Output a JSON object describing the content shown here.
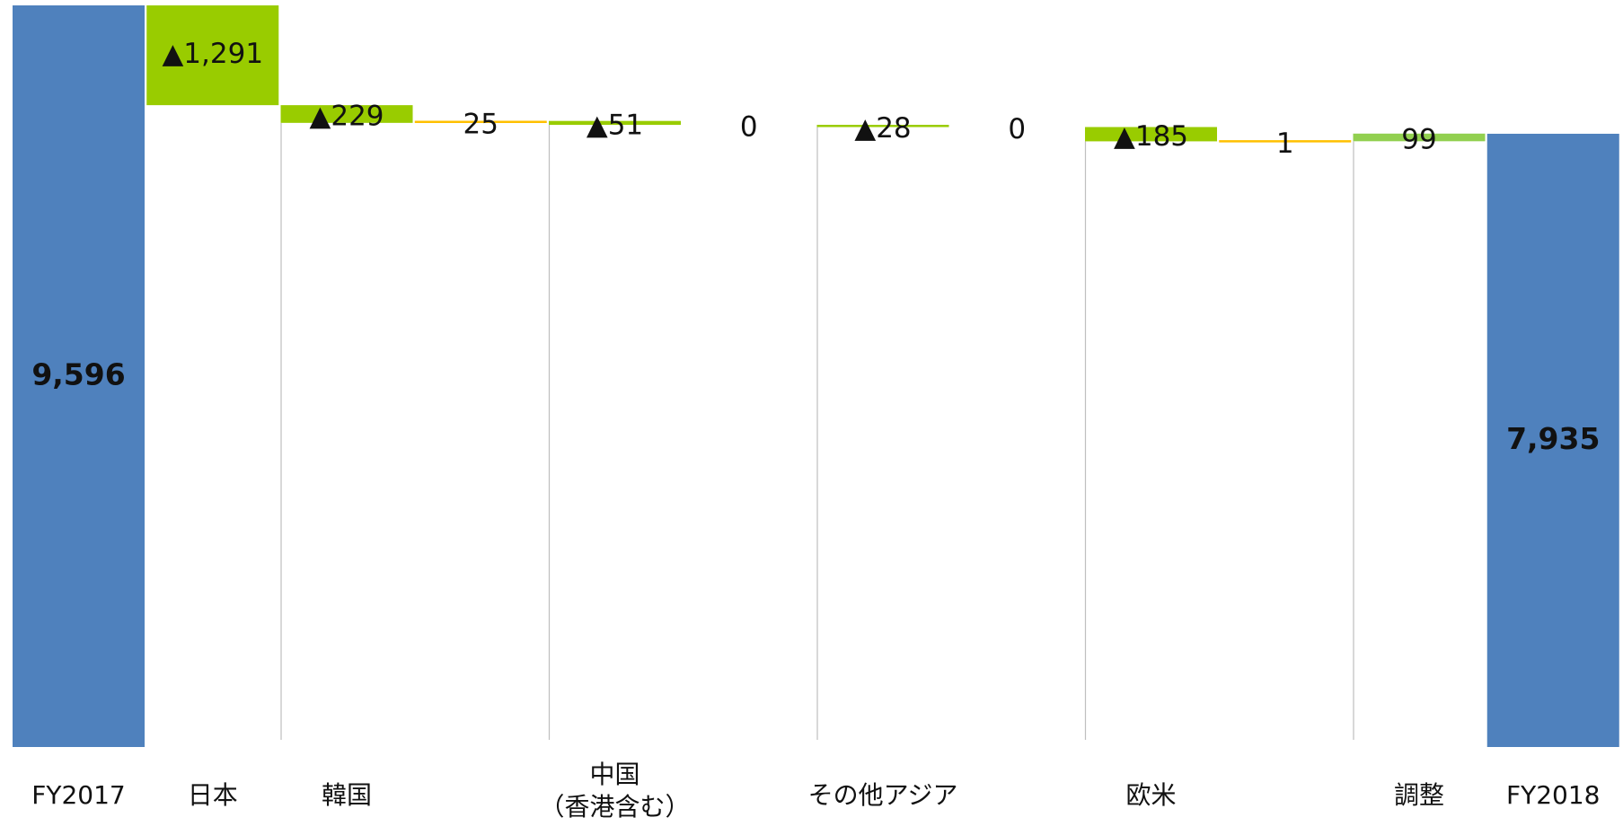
{
  "chart_data": {
    "type": "waterfall",
    "title": "",
    "xlabel": "",
    "ylabel": "",
    "ylim": [
      0,
      9596
    ],
    "grid": false,
    "legend": "none",
    "colors": {
      "total": "#4f81bd",
      "decrease": "#99cc00",
      "increase_small": "#ffc000",
      "adjust": "#92d050",
      "connector": "#bfbfbf"
    },
    "bars": [
      {
        "category": "FY2017",
        "kind": "total",
        "value": 9596,
        "label": "9,596"
      },
      {
        "category": "日本",
        "kind": "decrease",
        "value": -1291,
        "label": "▲1,291"
      },
      {
        "category": "韓国",
        "kind": "decrease",
        "value": -229,
        "label": "▲229"
      },
      {
        "category": "",
        "kind": "increase",
        "value": 25,
        "label": "25"
      },
      {
        "category": "中国\n（香港含む）",
        "kind": "decrease",
        "value": -51,
        "label": "▲51"
      },
      {
        "category": "",
        "kind": "increase",
        "value": 0,
        "label": "0"
      },
      {
        "category": "その他アジア",
        "kind": "decrease",
        "value": -28,
        "label": "▲28"
      },
      {
        "category": "",
        "kind": "increase",
        "value": 0,
        "label": "0"
      },
      {
        "category": "欧米",
        "kind": "decrease",
        "value": -185,
        "label": "▲185"
      },
      {
        "category": "",
        "kind": "increase",
        "value": 1,
        "label": "1"
      },
      {
        "category": "調整",
        "kind": "adjust",
        "value": 99,
        "label": "99"
      },
      {
        "category": "FY2018",
        "kind": "total",
        "value": 7935,
        "label": "7,935"
      }
    ]
  }
}
